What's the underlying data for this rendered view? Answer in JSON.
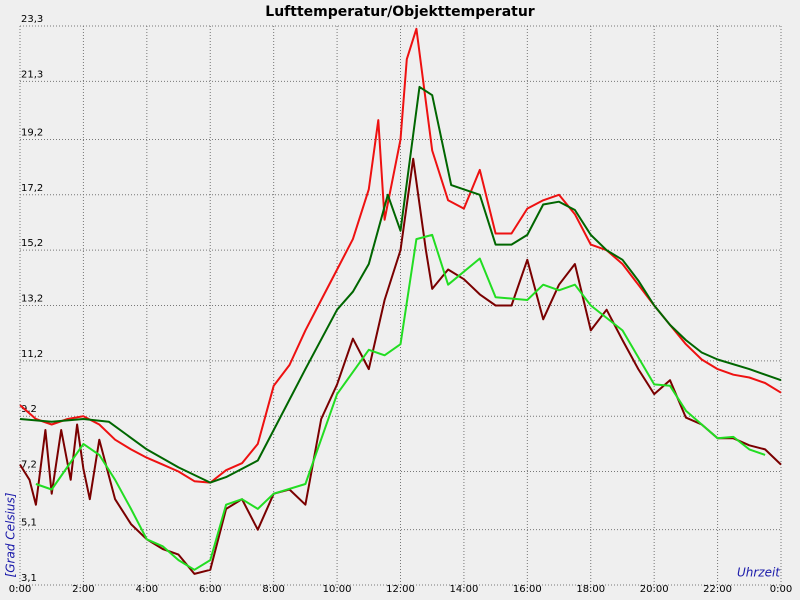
{
  "chart_data": {
    "type": "line",
    "title": "Lufttemperatur/Objekttemperatur",
    "y_label": "[Grad Celsius]",
    "x_label": "Uhrzeit",
    "xlim": [
      0,
      24
    ],
    "ylim": [
      3.1,
      23.3
    ],
    "grid": true,
    "xticks": [
      {
        "value": 0,
        "label": "0:00"
      },
      {
        "value": 2,
        "label": "2:00"
      },
      {
        "value": 4,
        "label": "4:00"
      },
      {
        "value": 6,
        "label": "6:00"
      },
      {
        "value": 8,
        "label": "8:00"
      },
      {
        "value": 10,
        "label": "10:00"
      },
      {
        "value": 12,
        "label": "12:00"
      },
      {
        "value": 14,
        "label": "14:00"
      },
      {
        "value": 16,
        "label": "16:00"
      },
      {
        "value": 18,
        "label": "18:00"
      },
      {
        "value": 20,
        "label": "20:00"
      },
      {
        "value": 22,
        "label": "22:00"
      },
      {
        "value": 24,
        "label": "0:00"
      }
    ],
    "yticks": [
      {
        "value": 3.1,
        "label": "3,1"
      },
      {
        "value": 5.1,
        "label": "5,1"
      },
      {
        "value": 7.2,
        "label": "7,2"
      },
      {
        "value": 9.2,
        "label": "9,2"
      },
      {
        "value": 11.2,
        "label": "11,2"
      },
      {
        "value": 13.2,
        "label": "13,2"
      },
      {
        "value": 15.2,
        "label": "15,2"
      },
      {
        "value": 17.2,
        "label": "17,2"
      },
      {
        "value": 19.2,
        "label": "19,2"
      },
      {
        "value": 21.3,
        "label": "21,3"
      },
      {
        "value": 23.3,
        "label": "23,3"
      }
    ],
    "series": [
      {
        "color": "#ee1111",
        "x": [
          0,
          0.5,
          1,
          1.5,
          2,
          2.5,
          3,
          3.5,
          4,
          4.5,
          5,
          5.5,
          6,
          6.5,
          7,
          7.5,
          8,
          8.5,
          9,
          9.5,
          10,
          10.5,
          11,
          11.3,
          11.5,
          12,
          12.2,
          12.5,
          13,
          13.5,
          14,
          14.5,
          15,
          15.5,
          16,
          16.5,
          17,
          17.5,
          18,
          18.5,
          19,
          19.5,
          20,
          20.5,
          21,
          21.5,
          22,
          22.5,
          23,
          23.5,
          24
        ],
        "values": [
          9.6,
          9.1,
          8.9,
          9.1,
          9.2,
          8.9,
          8.35,
          8.0,
          7.7,
          7.45,
          7.2,
          6.85,
          6.8,
          7.25,
          7.5,
          8.2,
          10.3,
          11.05,
          12.3,
          13.4,
          14.5,
          15.6,
          17.4,
          19.9,
          16.3,
          19.2,
          22.1,
          23.2,
          18.8,
          17.0,
          16.7,
          18.1,
          15.8,
          15.8,
          16.7,
          17.0,
          17.2,
          16.5,
          15.4,
          15.2,
          14.7,
          13.95,
          13.2,
          12.5,
          11.8,
          11.25,
          10.9,
          10.7,
          10.6,
          10.4,
          10.05
        ]
      },
      {
        "color": "#006600",
        "x": [
          0,
          1,
          2,
          2.8,
          4,
          5,
          6,
          6.5,
          7.5,
          8,
          9,
          10,
          10.5,
          11,
          11.6,
          12,
          12.6,
          13,
          13.6,
          14.5,
          15,
          15.5,
          16,
          16.5,
          17,
          17.5,
          18,
          18.5,
          19,
          19.5,
          20,
          20.5,
          21,
          21.5,
          22,
          23,
          24
        ],
        "values": [
          9.1,
          9.0,
          9.1,
          9.0,
          8.0,
          7.35,
          6.8,
          7.0,
          7.6,
          8.7,
          10.9,
          13.05,
          13.7,
          14.7,
          17.2,
          15.9,
          21.1,
          20.8,
          17.55,
          17.2,
          15.4,
          15.4,
          15.75,
          16.85,
          16.95,
          16.65,
          15.75,
          15.2,
          14.85,
          14.1,
          13.2,
          12.5,
          11.95,
          11.5,
          11.25,
          10.9,
          10.5
        ]
      },
      {
        "color": "#7a0000",
        "x": [
          0,
          0.3,
          0.5,
          0.8,
          1,
          1.3,
          1.6,
          1.8,
          2,
          2.2,
          2.5,
          3,
          3.5,
          4,
          4.5,
          5,
          5.5,
          6,
          6.5,
          7,
          7.5,
          8,
          8.5,
          9,
          9.5,
          10,
          10.5,
          11,
          11.5,
          12,
          12.4,
          12.8,
          13,
          13.5,
          14,
          14.5,
          15,
          15.5,
          16,
          16.5,
          17,
          17.5,
          18,
          18.5,
          19,
          19.5,
          20,
          20.5,
          21,
          21.5,
          22,
          22.5,
          23,
          23.5,
          24
        ],
        "values": [
          7.45,
          6.9,
          6.0,
          8.7,
          6.4,
          8.7,
          6.9,
          8.9,
          7.3,
          6.2,
          8.35,
          6.2,
          5.3,
          4.75,
          4.4,
          4.2,
          3.5,
          3.65,
          5.85,
          6.2,
          5.1,
          6.4,
          6.55,
          6.0,
          9.1,
          10.35,
          12.0,
          10.9,
          13.4,
          15.2,
          18.5,
          15.2,
          13.8,
          14.5,
          14.15,
          13.6,
          13.2,
          13.2,
          14.85,
          12.7,
          13.95,
          14.7,
          12.3,
          13.05,
          11.95,
          10.9,
          10.0,
          10.5,
          9.15,
          8.9,
          8.4,
          8.4,
          8.15,
          8.0,
          7.45
        ]
      },
      {
        "color": "#22dd22",
        "x": [
          0.5,
          1,
          2,
          2.5,
          3,
          3.5,
          4,
          4.5,
          5,
          5.5,
          6,
          6.5,
          7,
          7.5,
          8,
          9,
          10,
          11,
          11.5,
          12,
          12.5,
          13,
          13.5,
          14.5,
          15,
          16,
          16.5,
          17,
          17.5,
          18,
          19,
          20,
          20.5,
          21,
          22,
          22.5,
          23,
          23.5
        ],
        "values": [
          6.75,
          6.55,
          8.2,
          7.8,
          6.9,
          5.85,
          4.75,
          4.5,
          4.0,
          3.65,
          4.0,
          6.0,
          6.2,
          5.85,
          6.4,
          6.75,
          10.0,
          11.6,
          11.4,
          11.8,
          15.6,
          15.75,
          13.95,
          14.9,
          13.5,
          13.4,
          13.95,
          13.75,
          13.95,
          13.2,
          12.3,
          10.35,
          10.3,
          9.4,
          8.4,
          8.45,
          8.0,
          7.8
        ]
      }
    ]
  }
}
